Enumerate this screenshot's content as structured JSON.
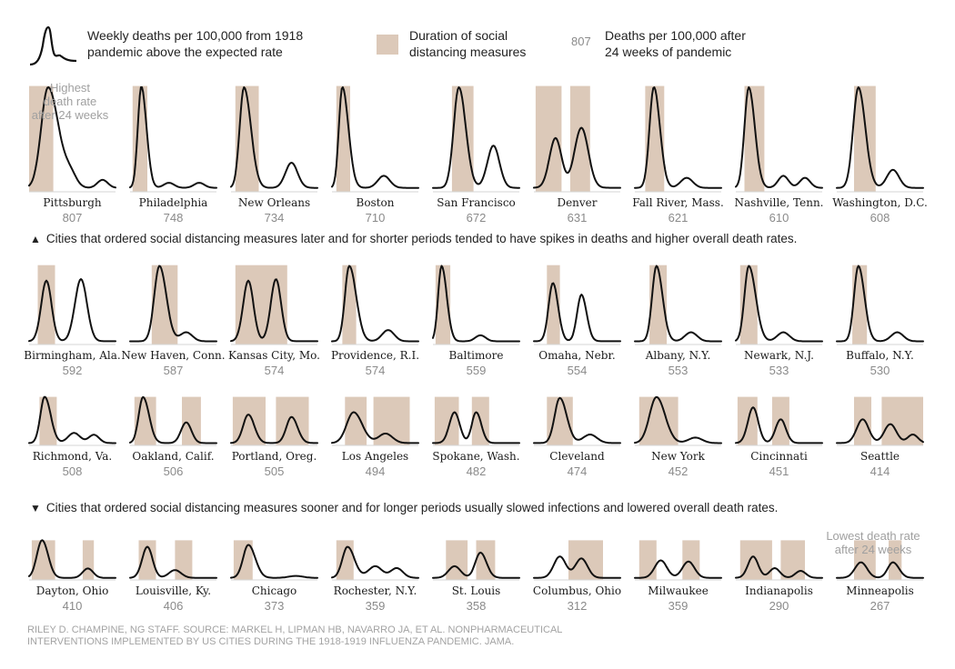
{
  "legend": {
    "curve_label": "Weekly deaths per 100,000 from 1918\npandemic above the expected rate",
    "band_label": "Duration of social\ndistancing measures",
    "number_sample": "807",
    "number_label": "Deaths per 100,000 after\n24 weeks of pandemic"
  },
  "annotations": {
    "highest": "Highest\ndeath rate\nafter 24 weeks",
    "lowest": "Lowest death rate\nafter 24 weeks"
  },
  "captions": {
    "upper": "Cities that ordered social distancing measures later and for shorter periods tended to have spikes in deaths and higher overall death rates.",
    "lower": "Cities that ordered social distancing measures sooner and for longer periods usually slowed infections and lowered overall death rates."
  },
  "credit": "RILEY D. CHAMPINE, NG STAFF. SOURCE: MARKEL H, LIPMAN HB, NAVARRO JA, ET AL. NONPHARMACEUTICAL\nINTERVENTIONS IMPLEMENTED BY US CITIES DURING THE 1918-1919 INFLUENZA PANDEMIC. JAMA.",
  "colors": {
    "band": "#dcc9b9",
    "curve": "#111111",
    "baseline": "#d6d6d6",
    "number": "#8a8a8a"
  },
  "chart_data": {
    "type": "line",
    "description_of_series": "small multiples; each city has a weekly curve (normalized shape) and shaded social-distancing periods",
    "cities": [
      {
        "name": "Pittsburgh",
        "deaths": 807,
        "bands": [
          [
            0.0,
            0.28
          ]
        ],
        "peaks": [
          [
            0.22,
            1.0,
            0.08,
            0.12
          ],
          [
            0.48,
            0.12,
            0.07,
            0.07
          ],
          [
            0.85,
            0.08,
            0.06,
            0.06
          ]
        ]
      },
      {
        "name": "Philadelphia",
        "deaths": 748,
        "bands": [
          [
            0.03,
            0.2
          ]
        ],
        "peaks": [
          [
            0.13,
            1.0,
            0.04,
            0.06
          ],
          [
            0.45,
            0.05,
            0.06,
            0.06
          ],
          [
            0.8,
            0.05,
            0.06,
            0.06
          ]
        ]
      },
      {
        "name": "New Orleans",
        "deaths": 734,
        "bands": [
          [
            0.05,
            0.32
          ]
        ],
        "peaks": [
          [
            0.15,
            1.0,
            0.05,
            0.08
          ],
          [
            0.7,
            0.25,
            0.07,
            0.07
          ]
        ]
      },
      {
        "name": "Boston",
        "deaths": 710,
        "bands": [
          [
            0.05,
            0.21
          ]
        ],
        "peaks": [
          [
            0.12,
            1.0,
            0.04,
            0.07
          ],
          [
            0.6,
            0.12,
            0.07,
            0.07
          ]
        ]
      },
      {
        "name": "San Francisco",
        "deaths": 672,
        "bands": [
          [
            0.22,
            0.47
          ]
        ],
        "peaks": [
          [
            0.3,
            1.0,
            0.06,
            0.08
          ],
          [
            0.7,
            0.42,
            0.07,
            0.07
          ]
        ]
      },
      {
        "name": "Denver",
        "deaths": 631,
        "bands": [
          [
            0.02,
            0.32
          ],
          [
            0.42,
            0.65
          ]
        ],
        "peaks": [
          [
            0.25,
            0.48,
            0.07,
            0.07
          ],
          [
            0.55,
            0.58,
            0.08,
            0.08
          ]
        ]
      },
      {
        "name": "Fall River, Mass.",
        "deaths": 621,
        "bands": [
          [
            0.12,
            0.34
          ]
        ],
        "peaks": [
          [
            0.22,
            1.0,
            0.05,
            0.07
          ],
          [
            0.6,
            0.1,
            0.07,
            0.07
          ]
        ]
      },
      {
        "name": "Nashville, Tenn.",
        "deaths": 610,
        "bands": [
          [
            0.1,
            0.33
          ]
        ],
        "peaks": [
          [
            0.15,
            1.0,
            0.05,
            0.07
          ],
          [
            0.55,
            0.12,
            0.06,
            0.06
          ],
          [
            0.8,
            0.1,
            0.06,
            0.06
          ]
        ]
      },
      {
        "name": "Washington, D.C.",
        "deaths": 608,
        "bands": [
          [
            0.2,
            0.45
          ]
        ],
        "peaks": [
          [
            0.25,
            1.0,
            0.06,
            0.08
          ],
          [
            0.65,
            0.18,
            0.07,
            0.07
          ]
        ]
      },
      {
        "name": "Birmingham, Ala.",
        "deaths": 592,
        "bands": [
          [
            0.1,
            0.3
          ]
        ],
        "peaks": [
          [
            0.2,
            0.78,
            0.06,
            0.06
          ],
          [
            0.6,
            0.8,
            0.07,
            0.07
          ]
        ]
      },
      {
        "name": "New Haven, Conn.",
        "deaths": 587,
        "bands": [
          [
            0.25,
            0.55
          ]
        ],
        "peaks": [
          [
            0.34,
            1.0,
            0.06,
            0.08
          ],
          [
            0.65,
            0.12,
            0.07,
            0.07
          ]
        ]
      },
      {
        "name": "Kansas City, Mo.",
        "deaths": 574,
        "bands": [
          [
            0.05,
            0.65
          ]
        ],
        "peaks": [
          [
            0.2,
            0.78,
            0.06,
            0.06
          ],
          [
            0.52,
            0.8,
            0.06,
            0.06
          ]
        ]
      },
      {
        "name": "Providence, R.I.",
        "deaths": 574,
        "bands": [
          [
            0.12,
            0.28
          ]
        ],
        "peaks": [
          [
            0.2,
            1.0,
            0.05,
            0.08
          ],
          [
            0.65,
            0.15,
            0.07,
            0.07
          ]
        ]
      },
      {
        "name": "Baltimore",
        "deaths": 559,
        "bands": [
          [
            0.03,
            0.2
          ]
        ],
        "peaks": [
          [
            0.1,
            1.0,
            0.04,
            0.06
          ],
          [
            0.55,
            0.08,
            0.06,
            0.06
          ]
        ]
      },
      {
        "name": "Omaha, Nebr.",
        "deaths": 554,
        "bands": [
          [
            0.15,
            0.3
          ]
        ],
        "peaks": [
          [
            0.22,
            0.75,
            0.05,
            0.06
          ],
          [
            0.55,
            0.6,
            0.05,
            0.06
          ]
        ]
      },
      {
        "name": "Albany, N.Y.",
        "deaths": 553,
        "bands": [
          [
            0.17,
            0.37
          ]
        ],
        "peaks": [
          [
            0.25,
            1.0,
            0.05,
            0.07
          ],
          [
            0.65,
            0.12,
            0.07,
            0.07
          ]
        ]
      },
      {
        "name": "Newark, N.J.",
        "deaths": 533,
        "bands": [
          [
            0.05,
            0.25
          ]
        ],
        "peaks": [
          [
            0.15,
            1.0,
            0.05,
            0.08
          ],
          [
            0.55,
            0.12,
            0.07,
            0.07
          ]
        ]
      },
      {
        "name": "Buffalo, N.Y.",
        "deaths": 530,
        "bands": [
          [
            0.18,
            0.35
          ]
        ],
        "peaks": [
          [
            0.25,
            1.0,
            0.05,
            0.07
          ],
          [
            0.7,
            0.12,
            0.07,
            0.07
          ]
        ]
      },
      {
        "name": "Richmond, Va.",
        "deaths": 508,
        "bands": [
          [
            0.12,
            0.32
          ]
        ],
        "peaks": [
          [
            0.18,
            1.0,
            0.05,
            0.07
          ],
          [
            0.52,
            0.22,
            0.07,
            0.07
          ],
          [
            0.75,
            0.18,
            0.06,
            0.06
          ]
        ]
      },
      {
        "name": "Oakland, Calif.",
        "deaths": 506,
        "bands": [
          [
            0.05,
            0.3
          ],
          [
            0.6,
            0.82
          ]
        ],
        "peaks": [
          [
            0.15,
            1.0,
            0.05,
            0.07
          ],
          [
            0.65,
            0.45,
            0.06,
            0.06
          ]
        ]
      },
      {
        "name": "Portland, Oreg.",
        "deaths": 505,
        "bands": [
          [
            0.02,
            0.4
          ],
          [
            0.52,
            0.9
          ]
        ],
        "peaks": [
          [
            0.2,
            0.6,
            0.06,
            0.07
          ],
          [
            0.7,
            0.55,
            0.06,
            0.07
          ]
        ]
      },
      {
        "name": "Los Angeles",
        "deaths": 494,
        "bands": [
          [
            0.15,
            0.4
          ],
          [
            0.48,
            0.9
          ]
        ],
        "peaks": [
          [
            0.25,
            0.65,
            0.08,
            0.1
          ],
          [
            0.62,
            0.2,
            0.08,
            0.08
          ]
        ]
      },
      {
        "name": "Spokane, Wash.",
        "deaths": 482,
        "bands": [
          [
            0.02,
            0.3
          ],
          [
            0.45,
            0.65
          ]
        ],
        "peaks": [
          [
            0.25,
            0.65,
            0.06,
            0.06
          ],
          [
            0.5,
            0.65,
            0.05,
            0.06
          ]
        ]
      },
      {
        "name": "Cleveland",
        "deaths": 474,
        "bands": [
          [
            0.15,
            0.45
          ]
        ],
        "peaks": [
          [
            0.3,
            0.95,
            0.06,
            0.08
          ],
          [
            0.65,
            0.18,
            0.08,
            0.08
          ]
        ]
      },
      {
        "name": "New York",
        "deaths": 452,
        "bands": [
          [
            0.05,
            0.5
          ]
        ],
        "peaks": [
          [
            0.25,
            1.0,
            0.08,
            0.1
          ],
          [
            0.7,
            0.12,
            0.08,
            0.08
          ]
        ]
      },
      {
        "name": "Cincinnati",
        "deaths": 451,
        "bands": [
          [
            0.02,
            0.25
          ],
          [
            0.42,
            0.62
          ]
        ],
        "peaks": [
          [
            0.2,
            0.75,
            0.06,
            0.06
          ],
          [
            0.52,
            0.5,
            0.06,
            0.06
          ]
        ]
      },
      {
        "name": "Seattle",
        "deaths": 414,
        "bands": [
          [
            0.2,
            0.4
          ],
          [
            0.52,
            1.0
          ]
        ],
        "peaks": [
          [
            0.3,
            0.5,
            0.07,
            0.07
          ],
          [
            0.62,
            0.4,
            0.07,
            0.07
          ],
          [
            0.88,
            0.18,
            0.06,
            0.06
          ]
        ]
      },
      {
        "name": "Dayton, Ohio",
        "deaths": 410,
        "bands": [
          [
            0.03,
            0.3
          ],
          [
            0.62,
            0.75
          ]
        ],
        "peaks": [
          [
            0.15,
            1.0,
            0.06,
            0.07
          ],
          [
            0.68,
            0.25,
            0.06,
            0.06
          ]
        ]
      },
      {
        "name": "Louisville, Ky.",
        "deaths": 406,
        "bands": [
          [
            0.1,
            0.3
          ],
          [
            0.52,
            0.72
          ]
        ],
        "peaks": [
          [
            0.2,
            0.8,
            0.06,
            0.06
          ],
          [
            0.52,
            0.2,
            0.07,
            0.07
          ]
        ]
      },
      {
        "name": "Chicago",
        "deaths": 373,
        "bands": [
          [
            0.03,
            0.25
          ]
        ],
        "peaks": [
          [
            0.2,
            0.85,
            0.06,
            0.08
          ],
          [
            0.75,
            0.05,
            0.08,
            0.08
          ]
        ]
      },
      {
        "name": "Rochester, N.Y.",
        "deaths": 359,
        "bands": [
          [
            0.05,
            0.25
          ]
        ],
        "peaks": [
          [
            0.18,
            0.8,
            0.06,
            0.08
          ],
          [
            0.5,
            0.3,
            0.08,
            0.08
          ],
          [
            0.75,
            0.25,
            0.07,
            0.07
          ]
        ]
      },
      {
        "name": "St. Louis",
        "deaths": 358,
        "bands": [
          [
            0.15,
            0.4
          ],
          [
            0.5,
            0.72
          ]
        ],
        "peaks": [
          [
            0.25,
            0.3,
            0.07,
            0.07
          ],
          [
            0.55,
            0.65,
            0.06,
            0.07
          ]
        ]
      },
      {
        "name": "Columbus, Ohio",
        "deaths": 312,
        "bands": [
          [
            0.4,
            0.8
          ]
        ],
        "peaks": [
          [
            0.3,
            0.55,
            0.07,
            0.07
          ],
          [
            0.55,
            0.5,
            0.07,
            0.07
          ]
        ]
      },
      {
        "name": "Milwaukee",
        "deaths": 359,
        "bands": [
          [
            0.05,
            0.25
          ],
          [
            0.55,
            0.75
          ]
        ],
        "peaks": [
          [
            0.3,
            0.45,
            0.07,
            0.07
          ],
          [
            0.62,
            0.42,
            0.07,
            0.07
          ]
        ]
      },
      {
        "name": "Indianapolis",
        "deaths": 290,
        "bands": [
          [
            0.05,
            0.42
          ],
          [
            0.52,
            0.8
          ]
        ],
        "peaks": [
          [
            0.2,
            0.55,
            0.06,
            0.06
          ],
          [
            0.45,
            0.25,
            0.06,
            0.06
          ],
          [
            0.75,
            0.18,
            0.06,
            0.06
          ]
        ]
      },
      {
        "name": "Minneapolis",
        "deaths": 267,
        "bands": [
          [
            0.2,
            0.45
          ],
          [
            0.6,
            0.75
          ]
        ],
        "peaks": [
          [
            0.28,
            0.4,
            0.07,
            0.07
          ],
          [
            0.65,
            0.4,
            0.06,
            0.07
          ]
        ]
      }
    ]
  }
}
